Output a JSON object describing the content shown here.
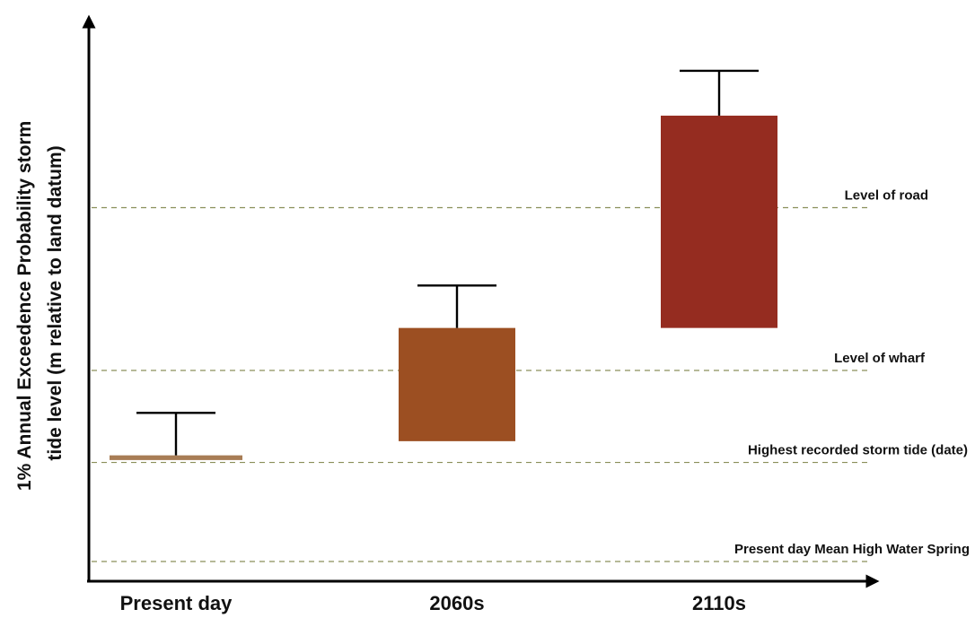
{
  "chart_data": {
    "type": "bar",
    "title": "",
    "xlabel": "",
    "ylabel_lines": [
      "1% Annual Exceedence Probability storm",
      "tide level (m relative to land datum)"
    ],
    "y_tick_labels": false,
    "categories": [
      "Present day",
      "2060s",
      "2110s"
    ],
    "ylim": [
      0,
      100
    ],
    "bars": [
      {
        "category": "Present day",
        "low": 21.5,
        "high": 22.5,
        "error_top": 31.5,
        "color": "#a87d55"
      },
      {
        "category": "2060s",
        "low": 25.5,
        "high": 49.5,
        "error_top": 58.5,
        "color": "#9c4f22"
      },
      {
        "category": "2110s",
        "low": 49.5,
        "high": 94.5,
        "error_top": 104.0,
        "color": "#952c20"
      }
    ],
    "reference_lines": [
      {
        "label": "Level of road",
        "value": 75.0
      },
      {
        "label": "Level of wharf",
        "value": 40.5
      },
      {
        "label": "Highest recorded storm tide (date)",
        "value": 21.0
      },
      {
        "label": "Present day Mean High Water Spring",
        "value": 0.0
      }
    ],
    "reference_line_color": "#8a8f5a"
  }
}
